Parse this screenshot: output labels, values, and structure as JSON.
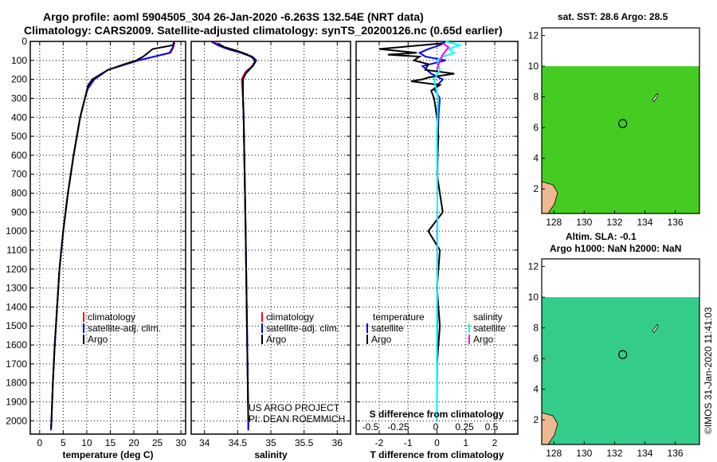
{
  "header": {
    "title_line1": "Argo profile: aoml 5904505_304 26-Jan-2020 -6.263S 132.54E (NRT data)",
    "title_line2": "Climatology: CARS2009. Satellite-adjusted climatology: synTS_20200126.nc (0.65d earlier)"
  },
  "maps": {
    "sst_title": "sat. SST: 28.6 Argo: 28.5",
    "sla_title_line1": "Altim. SLA: -0.1",
    "sla_title_line2": "Argo h1000: NaN h2000: NaN",
    "x_ticks": [
      "128",
      "130",
      "132",
      "134",
      "136"
    ],
    "y_ticks": [
      "2",
      "4",
      "6",
      "8",
      "10",
      "12"
    ],
    "argo_lon": 132.54,
    "argo_lat": 6.26
  },
  "credits": {
    "project": "US ARGO PROJECT",
    "pi": "PI: DEAN ROEMMICH",
    "stamp": "©IMOS 31-Jan-2020 11:41:03"
  },
  "colors": {
    "climatology": "#ff0000",
    "satellite": "#0000ff",
    "argo": "#000000",
    "sal_satellite": "#00ffff",
    "sal_argo": "#ff00ff",
    "sst_map": "#44cc22",
    "sla_map": "#33cc88",
    "land": "#f0b890"
  },
  "chart_data": [
    {
      "type": "line",
      "xlabel": "temperature (deg C)",
      "ylabel": "",
      "xlim": [
        -2,
        31
      ],
      "ylim": [
        2070,
        0
      ],
      "x_ticks": [
        "0",
        "5",
        "10",
        "15",
        "20",
        "25",
        "30"
      ],
      "y_ticks": [
        "0",
        "100",
        "200",
        "300",
        "400",
        "500",
        "600",
        "700",
        "800",
        "900",
        "1000",
        "1100",
        "1200",
        "1300",
        "1400",
        "1500",
        "1600",
        "1700",
        "1800",
        "1900",
        "2000"
      ],
      "legend": [
        "climatology",
        "satellite-adj. clim.",
        "Argo"
      ],
      "series": [
        {
          "name": "climatology",
          "depth": [
            0,
            10,
            30,
            60,
            100,
            150,
            200,
            250,
            300,
            400,
            500,
            600,
            700,
            800,
            900,
            1000,
            1200,
            1400,
            1600,
            1800,
            2000,
            2050
          ],
          "values": [
            28.6,
            28.6,
            28.4,
            27.8,
            21,
            14.5,
            11.5,
            10.2,
            9.6,
            8.6,
            7.9,
            7.2,
            6.6,
            6.0,
            5.5,
            5.0,
            4.2,
            3.7,
            3.2,
            2.8,
            2.5,
            2.4
          ]
        },
        {
          "name": "satellite-adj. clim.",
          "depth": [
            0,
            10,
            30,
            60,
            100,
            150,
            200,
            250,
            300,
            400,
            500,
            600,
            700,
            800,
            900,
            1000,
            1200,
            1400,
            1600,
            1800,
            2000,
            2050
          ],
          "values": [
            28.5,
            28.5,
            28.3,
            27.6,
            21,
            14.5,
            11.6,
            10.2,
            9.6,
            8.6,
            7.9,
            7.2,
            6.6,
            6.0,
            5.5,
            5.0,
            4.2,
            3.7,
            3.2,
            2.8,
            2.5,
            2.4
          ]
        },
        {
          "name": "Argo",
          "depth": [
            5,
            20,
            40,
            60,
            80,
            100,
            120,
            150,
            180,
            200,
            230,
            270,
            300,
            400,
            500,
            600,
            700,
            800,
            900,
            1000,
            1200,
            1400,
            1600,
            1800,
            2000,
            2040
          ],
          "values": [
            28.5,
            28.3,
            24,
            23,
            22,
            20.5,
            18,
            14.5,
            12.5,
            11.2,
            10.3,
            9.9,
            9.6,
            8.6,
            7.9,
            7.2,
            6.6,
            6.0,
            5.5,
            5.0,
            4.2,
            3.7,
            3.2,
            2.8,
            2.5,
            2.4
          ]
        }
      ]
    },
    {
      "type": "line",
      "xlabel": "salinity",
      "ylabel": "",
      "xlim": [
        33.8,
        36.2
      ],
      "ylim": [
        2070,
        0
      ],
      "x_ticks": [
        "34",
        "34.5",
        "35",
        "35.5",
        "36"
      ],
      "legend": [
        "climatology",
        "satellite-adj. clim.",
        "Argo"
      ],
      "series": [
        {
          "name": "climatology",
          "depth": [
            0,
            20,
            40,
            60,
            80,
            100,
            130,
            160,
            200,
            250,
            300,
            400,
            600,
            800,
            1000,
            1500,
            2000,
            2050
          ],
          "values": [
            34.15,
            34.2,
            34.35,
            34.55,
            34.7,
            34.77,
            34.72,
            34.62,
            34.56,
            34.57,
            34.58,
            34.59,
            34.6,
            34.61,
            34.62,
            34.64,
            34.66,
            34.66
          ]
        },
        {
          "name": "satellite-adj. clim.",
          "depth": [
            0,
            20,
            40,
            60,
            80,
            100,
            130,
            160,
            200,
            250,
            300,
            400,
            600,
            800,
            1000,
            1500,
            2000,
            2050
          ],
          "values": [
            34.1,
            34.2,
            34.35,
            34.55,
            34.72,
            34.78,
            34.73,
            34.63,
            34.58,
            34.58,
            34.58,
            34.59,
            34.6,
            34.61,
            34.62,
            34.64,
            34.66,
            34.66
          ]
        },
        {
          "name": "Argo",
          "depth": [
            10,
            30,
            50,
            70,
            90,
            110,
            140,
            170,
            200,
            260,
            300,
            400,
            600,
            800,
            1000,
            1500,
            2000
          ],
          "values": [
            34.2,
            34.3,
            34.5,
            34.65,
            34.74,
            34.76,
            34.7,
            34.62,
            34.58,
            34.58,
            34.58,
            34.59,
            34.6,
            34.61,
            34.62,
            34.64,
            34.66
          ]
        }
      ]
    },
    {
      "type": "line",
      "xlabel": "T difference from climatology",
      "ylabel": "",
      "xlim": [
        -2.8,
        2.8
      ],
      "ylim": [
        2070,
        0
      ],
      "x_ticks": [
        "-2",
        "-1",
        "0",
        "1",
        "2"
      ],
      "top_axis_label": "S difference from climatology",
      "top_ticks": [
        "-0.5",
        "-0.25",
        "0",
        "0.25",
        "0.5"
      ],
      "legend_left_title": "temperature",
      "legend_right_title": "salinity",
      "legend_left": [
        "satellite",
        "Argo"
      ],
      "legend_right": [
        "satellite",
        "Argo"
      ],
      "series": [
        {
          "name": "satellite",
          "depth": [
            0,
            20,
            40,
            60,
            80,
            100,
            130,
            170,
            200,
            250,
            300,
            400,
            600,
            1000,
            1500,
            2000
          ],
          "values": [
            0.3,
            0.1,
            -0.3,
            -0.6,
            -0.4,
            0.3,
            -0.5,
            -0.2,
            0.2,
            -0.1,
            0.1,
            0.05,
            0.02,
            0.01,
            0.01,
            0.0
          ]
        },
        {
          "name": "Argo",
          "depth": [
            10,
            40,
            60,
            70,
            80,
            100,
            120,
            150,
            170,
            190,
            200,
            210,
            230,
            260,
            300,
            400,
            500,
            700,
            900,
            1000,
            1100,
            1300,
            1500,
            1700,
            1900,
            2000
          ],
          "values": [
            0.2,
            -2.0,
            -0.7,
            -1.7,
            -0.6,
            -0.8,
            -0.3,
            -0.4,
            0.6,
            -0.3,
            -0.5,
            -0.9,
            0.1,
            -0.2,
            -0.1,
            0.0,
            0.05,
            0.0,
            0.2,
            -0.3,
            0.1,
            0.0,
            0.1,
            0.0,
            0.0,
            0.0
          ]
        },
        {
          "name": "salinity satellite",
          "depth": [
            0,
            20,
            40,
            60,
            80,
            100,
            150,
            200,
            300,
            500,
            1000,
            1500,
            2000
          ],
          "values": [
            0.15,
            0.4,
            0.2,
            0.3,
            0.1,
            0.0,
            0.05,
            -0.05,
            0.02,
            0.0,
            0.01,
            0.0,
            0.0
          ]
        },
        {
          "name": "salinity Argo",
          "depth": [
            10,
            30,
            50,
            70,
            100,
            150
          ],
          "values": [
            0.1,
            0.2,
            0.15,
            0.1,
            0.05,
            0.0
          ]
        }
      ]
    }
  ]
}
